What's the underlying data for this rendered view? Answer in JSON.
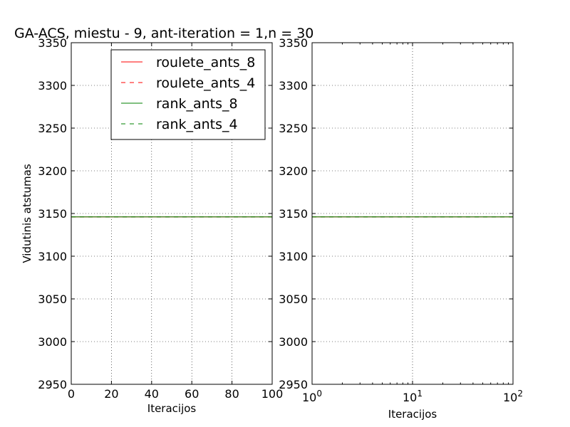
{
  "chart_data": [
    {
      "type": "line",
      "title": "GA-ACS, miestu - 9, ant-iteration = 1,n = 30",
      "xlabel": "Iteracijos",
      "ylabel": "Vidutinis atstumas",
      "xscale": "linear",
      "xlim": [
        0,
        100
      ],
      "ylim": [
        2950,
        3350
      ],
      "xticks": [
        0,
        20,
        40,
        60,
        80,
        100
      ],
      "xtick_labels": [
        "0",
        "20",
        "40",
        "60",
        "80",
        "100"
      ],
      "yticks": [
        2950,
        3000,
        3050,
        3100,
        3150,
        3200,
        3250,
        3300,
        3350
      ],
      "ytick_labels": [
        "2950",
        "3000",
        "3050",
        "3100",
        "3150",
        "3200",
        "3250",
        "3300",
        "3350"
      ],
      "grid": true,
      "legend_position": "top-right",
      "series": [
        {
          "name": "roulete_ants_8",
          "color": "#ff0000",
          "style": "solid",
          "x": [
            0,
            100
          ],
          "y": [
            3146,
            3146
          ]
        },
        {
          "name": "roulete_ants_4",
          "color": "#ff0000",
          "style": "dashed",
          "x": [
            0,
            100
          ],
          "y": [
            3146,
            3146
          ]
        },
        {
          "name": "rank_ants_8",
          "color": "#008000",
          "style": "solid",
          "x": [
            0,
            100
          ],
          "y": [
            3146,
            3146
          ]
        },
        {
          "name": "rank_ants_4",
          "color": "#008000",
          "style": "dashed",
          "x": [
            0,
            100
          ],
          "y": [
            3146,
            3146
          ]
        }
      ]
    },
    {
      "type": "line",
      "title": "",
      "xlabel": "Iteracijos",
      "ylabel": "",
      "xscale": "log",
      "xlim": [
        1,
        100
      ],
      "ylim": [
        2950,
        3350
      ],
      "xticks": [
        1,
        10,
        100
      ],
      "xtick_exponents": [
        "0",
        "1",
        "2"
      ],
      "xtick_base": "10",
      "yticks": [
        2950,
        3000,
        3050,
        3100,
        3150,
        3200,
        3250,
        3300,
        3350
      ],
      "ytick_labels": [
        "2950",
        "3000",
        "3050",
        "3100",
        "3150",
        "3200",
        "3250",
        "3300",
        "3350"
      ],
      "grid": true,
      "series": [
        {
          "color": "#ff0000",
          "style": "solid",
          "x": [
            1,
            100
          ],
          "y": [
            3146,
            3146
          ]
        },
        {
          "color": "#ff0000",
          "style": "dashed",
          "x": [
            1,
            100
          ],
          "y": [
            3146,
            3146
          ]
        },
        {
          "color": "#008000",
          "style": "solid",
          "x": [
            1,
            100
          ],
          "y": [
            3146,
            3146
          ]
        },
        {
          "color": "#008000",
          "style": "dashed",
          "x": [
            1,
            100
          ],
          "y": [
            3146,
            3146
          ]
        }
      ]
    }
  ]
}
